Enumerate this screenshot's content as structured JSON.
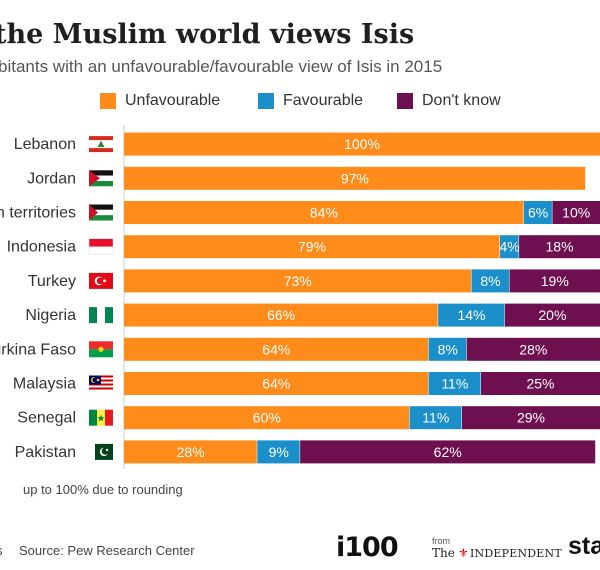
{
  "title": "the Muslim world views Isis",
  "subtitle": "bitants with an unfavourable/favourable view of Isis in 2015",
  "colors": {
    "unfavourable": "#ff8c1a",
    "favourable": "#1a8fc9",
    "dont_know": "#6e0f4f"
  },
  "legend": [
    {
      "name": "Unfavourable",
      "color": "#ff8c1a"
    },
    {
      "name": "Favourable",
      "color": "#1a8fc9"
    },
    {
      "name": "Don't know",
      "color": "#6e0f4f"
    }
  ],
  "chart_data": {
    "type": "bar",
    "orientation": "horizontal",
    "stacked": true,
    "title": "the Muslim world views Isis",
    "subtitle": "bitants with an unfavourable/favourable view of Isis in 2015",
    "categories": [
      "Lebanon",
      "Jordan",
      "n territories",
      "Indonesia",
      "Turkey",
      "Nigeria",
      "urkina Faso",
      "Malaysia",
      "Senegal",
      "Pakistan"
    ],
    "flags": [
      "lebanon-flag-icon",
      "jordan-flag-icon",
      "palestine-flag-icon",
      "indonesia-flag-icon",
      "turkey-flag-icon",
      "nigeria-flag-icon",
      "burkina-faso-flag-icon",
      "malaysia-flag-icon",
      "senegal-flag-icon",
      "pakistan-flag-icon"
    ],
    "series": [
      {
        "name": "Unfavourable",
        "color": "#ff8c1a",
        "values": [
          100,
          97,
          84,
          79,
          73,
          66,
          64,
          64,
          60,
          28
        ],
        "labels": [
          "100%",
          "97%",
          "84%",
          "79%",
          "73%",
          "66%",
          "64%",
          "64%",
          "60%",
          "28%"
        ]
      },
      {
        "name": "Favourable",
        "color": "#1a8fc9",
        "values": [
          0,
          0,
          6,
          4,
          8,
          14,
          8,
          11,
          11,
          9
        ],
        "labels": [
          "",
          "",
          "6%",
          "4%",
          "8%",
          "14%",
          "8%",
          "11%",
          "11%",
          "9%"
        ]
      },
      {
        "name": "Don't know",
        "color": "#6e0f4f",
        "values": [
          0,
          0,
          10,
          18,
          19,
          20,
          28,
          25,
          29,
          62
        ],
        "labels": [
          "",
          "",
          "10%",
          "18%",
          "19%",
          "20%",
          "28%",
          "25%",
          "29%",
          "62%"
        ]
      }
    ],
    "xlim": [
      0,
      100
    ],
    "grid": false,
    "legend_position": "top"
  },
  "footnote": "up to 100% due to rounding",
  "source_stub": "s",
  "source": "Source: Pew Research Center",
  "logos": {
    "i100": "i100",
    "from": "from",
    "the": "The",
    "bird": "⚜",
    "independent": "INDEPENDENT",
    "statista": "sta"
  }
}
